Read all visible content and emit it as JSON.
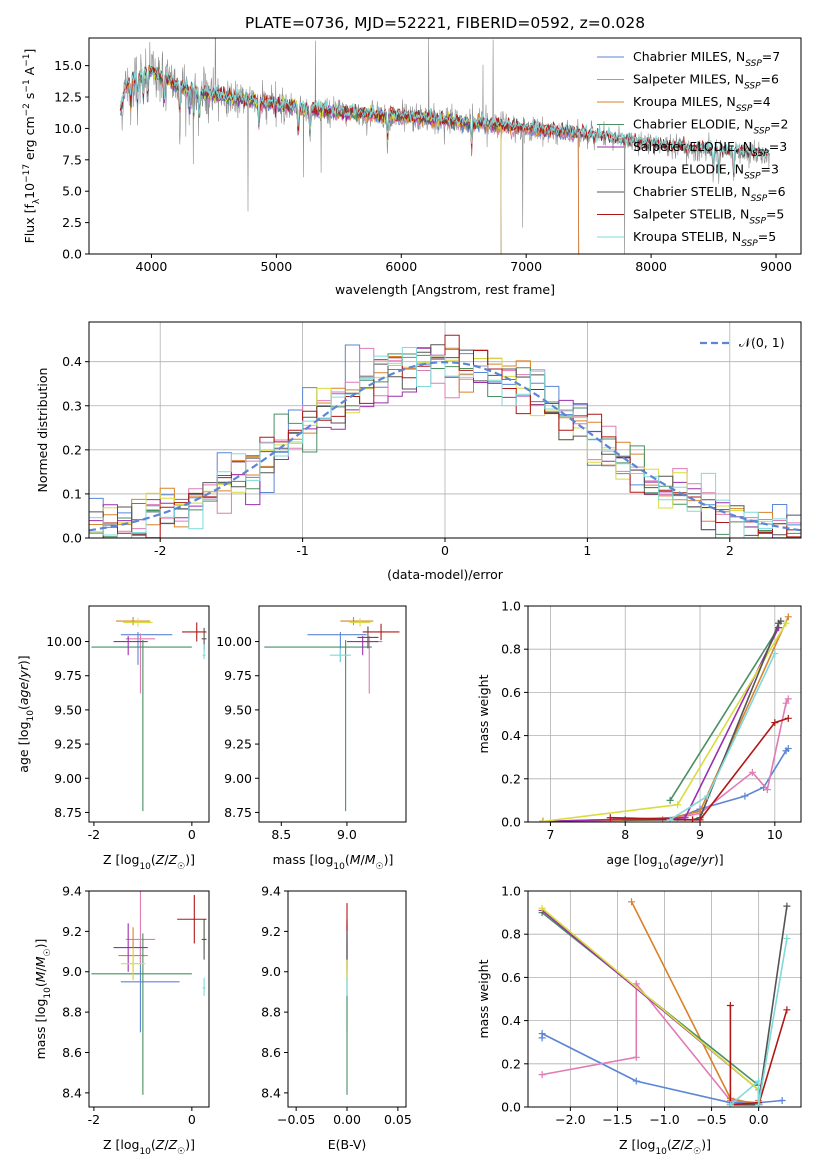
{
  "figure_title": "PLATE=0736, MJD=52221, FIBERID=0592, z=0.028",
  "colors": {
    "Chabrier MILES": "#5b86d6",
    "Salpeter MILES": "#e07bb5",
    "Kroupa MILES": "#d9822b",
    "Chabrier ELODIE": "#4a8f62",
    "Salpeter ELODIE": "#9b2fae",
    "Kroupa ELODIE": "#d8dd3f",
    "Chabrier STELIB": "#555555",
    "Salpeter STELIB": "#b01818",
    "Kroupa STELIB": "#7fdada",
    "data": "#8c8c8c"
  },
  "chart_data": [
    {
      "id": "spectrum",
      "type": "line",
      "title": "PLATE=0736, MJD=52221, FIBERID=0592, z=0.028",
      "xlabel": "wavelength [Angstrom, rest frame]",
      "ylabel": "Flux [f_λ10^-17 erg cm^-2 s^-1 A^-1]",
      "xlim": [
        3500,
        9200
      ],
      "ylim": [
        0,
        17.2
      ],
      "xticks": [
        4000,
        5000,
        6000,
        7000,
        8000,
        9000
      ],
      "yticks": [
        0.0,
        2.5,
        5.0,
        7.5,
        10.0,
        12.5,
        15.0
      ],
      "legend_position": "top-right",
      "legend": [
        {
          "name": "Chabrier MILES",
          "n_ssp": "7"
        },
        {
          "name": "Salpeter MILES",
          "n_ssp": "6"
        },
        {
          "name": "Kroupa MILES",
          "n_ssp": "4"
        },
        {
          "name": "Chabrier ELODIE",
          "n_ssp": "2"
        },
        {
          "name": "Salpeter ELODIE",
          "n_ssp": "3"
        },
        {
          "name": "Kroupa ELODIE",
          "n_ssp": "3"
        },
        {
          "name": "Chabrier STELIB",
          "n_ssp": "6"
        },
        {
          "name": "Salpeter STELIB",
          "n_ssp": "5"
        },
        {
          "name": "Kroupa STELIB",
          "n_ssp": "5"
        }
      ],
      "continuum": {
        "x": [
          3750,
          3800,
          3900,
          4000,
          4100,
          4200,
          4400,
          4600,
          4800,
          5000,
          5200,
          5400,
          5600,
          5800,
          6000,
          6200,
          6400,
          6600,
          6800,
          7000,
          7200,
          7400,
          7600,
          7800,
          8000,
          8200,
          8400,
          8600,
          8800,
          8950
        ],
        "y": [
          11.5,
          13.5,
          14.2,
          14.6,
          14.0,
          13.4,
          12.8,
          12.5,
          12.2,
          11.9,
          11.6,
          11.4,
          11.2,
          11.1,
          10.9,
          10.8,
          10.6,
          10.4,
          10.2,
          10.0,
          9.8,
          9.6,
          9.3,
          9.0,
          8.7,
          8.5,
          8.3,
          8.2,
          8.0,
          7.9
        ]
      },
      "model_cutoffs": {
        "MILES": [
          3750,
          7420
        ],
        "ELODIE": [
          3900,
          6800
        ],
        "STELIB": [
          3750,
          8950
        ]
      }
    },
    {
      "id": "residuals",
      "type": "histogram",
      "xlabel": "(data-model)/error",
      "ylabel": "Normed distribution",
      "xlim": [
        -2.5,
        2.5
      ],
      "ylim": [
        0,
        0.49
      ],
      "xticks": [
        -2,
        -1,
        0,
        1,
        2
      ],
      "yticks": [
        0.0,
        0.1,
        0.2,
        0.3,
        0.4
      ],
      "grid": true,
      "bin_width": 0.1,
      "reference_curve": "N(0,1)",
      "legend_label": "𝒩(0, 1)",
      "legend_position": "top-right"
    },
    {
      "id": "age_vs_Z",
      "type": "errorbar",
      "xlabel": "Z [log10(Z/Z☉)]",
      "ylabel": "age  [log10(age/yr)]",
      "xlim": [
        -2.1,
        0.35
      ],
      "ylim": [
        8.68,
        10.26
      ],
      "xticks": [
        -2,
        0
      ],
      "yticks": [
        8.75,
        9.0,
        9.25,
        9.5,
        9.75,
        10.0
      ],
      "points": [
        {
          "series": "Chabrier MILES",
          "x": -1.1,
          "xerr": [
            0.35,
            0.7
          ],
          "y": 10.05,
          "yerr": [
            0.22,
            0.02
          ]
        },
        {
          "series": "Salpeter MILES",
          "x": -1.05,
          "xerr": [
            0.3,
            0.3
          ],
          "y": 10.02,
          "yerr": [
            0.4,
            0.04
          ]
        },
        {
          "series": "Kroupa MILES",
          "x": -1.2,
          "xerr": [
            0.35,
            0.35
          ],
          "y": 10.15,
          "yerr": [
            0.03,
            0.03
          ]
        },
        {
          "series": "Chabrier ELODIE",
          "x": -1.0,
          "xerr": [
            1.05,
            1.0
          ],
          "y": 9.96,
          "yerr": [
            1.2,
            0.05
          ]
        },
        {
          "series": "Salpeter ELODIE",
          "x": -1.3,
          "xerr": [
            0.3,
            0.4
          ],
          "y": 10.0,
          "yerr": [
            0.1,
            0.04
          ]
        },
        {
          "series": "Kroupa ELODIE",
          "x": -1.1,
          "xerr": [
            0.3,
            0.3
          ],
          "y": 10.14,
          "yerr": [
            0.03,
            0.03
          ]
        },
        {
          "series": "Chabrier STELIB",
          "x": 0.25,
          "xerr": [
            0.05,
            0.05
          ],
          "y": 10.02,
          "yerr": [
            0.08,
            0.08
          ]
        },
        {
          "series": "Salpeter STELIB",
          "x": 0.1,
          "xerr": [
            0.3,
            0.2
          ],
          "y": 10.07,
          "yerr": [
            0.07,
            0.07
          ]
        },
        {
          "series": "Kroupa STELIB",
          "x": 0.25,
          "xerr": [
            0.03,
            0.03
          ],
          "y": 9.9,
          "yerr": [
            0.03,
            0.08
          ]
        }
      ]
    },
    {
      "id": "age_vs_mass",
      "type": "errorbar",
      "xlabel": "mass [log10(M/M☉)]",
      "ylabel": "",
      "xlim": [
        8.33,
        9.45
      ],
      "ylim": [
        8.68,
        10.26
      ],
      "xticks": [
        8.5,
        9.0
      ],
      "yticks": [
        8.75,
        9.0,
        9.25,
        9.5,
        9.75,
        10.0
      ],
      "points": [
        {
          "series": "Chabrier MILES",
          "x": 8.95,
          "xerr": [
            0.25,
            0.2
          ],
          "y": 10.05,
          "yerr": [
            0.2,
            0.02
          ]
        },
        {
          "series": "Salpeter MILES",
          "x": 9.17,
          "xerr": [
            0.1,
            0.1
          ],
          "y": 10.0,
          "yerr": [
            0.38,
            0.04
          ]
        },
        {
          "series": "Kroupa MILES",
          "x": 9.05,
          "xerr": [
            0.1,
            0.15
          ],
          "y": 10.15,
          "yerr": [
            0.03,
            0.03
          ]
        },
        {
          "series": "Chabrier ELODIE",
          "x": 8.99,
          "xerr": [
            0.62,
            0.2
          ],
          "y": 9.96,
          "yerr": [
            1.2,
            0.05
          ]
        },
        {
          "series": "Salpeter ELODIE",
          "x": 9.12,
          "xerr": [
            0.12,
            0.12
          ],
          "y": 10.0,
          "yerr": [
            0.1,
            0.04
          ]
        },
        {
          "series": "Kroupa ELODIE",
          "x": 9.1,
          "xerr": [
            0.08,
            0.08
          ],
          "y": 10.14,
          "yerr": [
            0.03,
            0.03
          ]
        },
        {
          "series": "Chabrier STELIB",
          "x": 9.16,
          "xerr": [
            0.08,
            0.08
          ],
          "y": 10.03,
          "yerr": [
            0.08,
            0.08
          ]
        },
        {
          "series": "Salpeter STELIB",
          "x": 9.26,
          "xerr": [
            0.14,
            0.14
          ],
          "y": 10.07,
          "yerr": [
            0.06,
            0.06
          ]
        },
        {
          "series": "Kroupa STELIB",
          "x": 8.95,
          "xerr": [
            0.08,
            0.08
          ],
          "y": 9.9,
          "yerr": [
            0.05,
            0.05
          ]
        }
      ]
    },
    {
      "id": "weight_vs_age",
      "type": "line",
      "xlabel": "age  [log10(age/yr)]",
      "ylabel": "mass weight",
      "xlim": [
        6.7,
        10.35
      ],
      "ylim": [
        0,
        1.0
      ],
      "xticks": [
        7,
        8,
        9,
        10
      ],
      "yticks": [
        0.0,
        0.2,
        0.4,
        0.6,
        0.8,
        1.0
      ],
      "grid": true,
      "series": [
        {
          "name": "Chabrier MILES",
          "x": [
            6.9,
            8.0,
            8.7,
            9.0,
            9.6,
            9.85,
            10.15,
            10.18
          ],
          "y": [
            0.003,
            0.01,
            0.02,
            0.06,
            0.12,
            0.16,
            0.33,
            0.34
          ]
        },
        {
          "name": "Salpeter MILES",
          "x": [
            6.9,
            8.7,
            9.0,
            9.7,
            9.9,
            10.15,
            10.18
          ],
          "y": [
            0.003,
            0.02,
            0.04,
            0.23,
            0.15,
            0.55,
            0.57
          ]
        },
        {
          "name": "Kroupa MILES",
          "x": [
            6.9,
            8.5,
            9.0,
            10.18
          ],
          "y": [
            0.003,
            0.01,
            0.05,
            0.95
          ]
        },
        {
          "name": "Chabrier ELODIE",
          "x": [
            8.6,
            10.05
          ],
          "y": [
            0.1,
            0.9
          ]
        },
        {
          "name": "Salpeter ELODIE",
          "x": [
            6.9,
            8.8,
            10.05
          ],
          "y": [
            0.003,
            0.02,
            0.9
          ]
        },
        {
          "name": "Kroupa ELODIE",
          "x": [
            6.9,
            8.7,
            10.15
          ],
          "y": [
            0.003,
            0.08,
            0.92
          ]
        },
        {
          "name": "Chabrier STELIB",
          "x": [
            8.0,
            8.9,
            9.0,
            10.05,
            10.08
          ],
          "y": [
            0.01,
            0.01,
            0.02,
            0.92,
            0.93
          ]
        },
        {
          "name": "Salpeter STELIB",
          "x": [
            7.8,
            8.9,
            9.0,
            10.0,
            10.18
          ],
          "y": [
            0.02,
            0.01,
            0.01,
            0.46,
            0.48
          ]
        },
        {
          "name": "Kroupa STELIB",
          "x": [
            8.6,
            9.1,
            10.0
          ],
          "y": [
            0.01,
            0.12,
            0.78
          ]
        }
      ]
    },
    {
      "id": "mass_vs_Z",
      "type": "errorbar",
      "xlabel": "Z [log10(Z/Z☉)]",
      "ylabel": "mass [log10(M/M☉)]",
      "xlim": [
        -2.1,
        0.35
      ],
      "ylim": [
        8.33,
        9.4
      ],
      "xticks": [
        -2,
        0
      ],
      "yticks": [
        8.4,
        8.6,
        8.8,
        9.0,
        9.2,
        9.4
      ],
      "points": [
        {
          "series": "Chabrier MILES",
          "x": -1.05,
          "xerr": [
            0.4,
            0.8
          ],
          "y": 8.95,
          "yerr": [
            0.25,
            0.2
          ]
        },
        {
          "series": "Salpeter MILES",
          "x": -1.05,
          "xerr": [
            0.3,
            0.3
          ],
          "y": 9.16,
          "yerr": [
            0.12,
            0.24
          ]
        },
        {
          "series": "Kroupa MILES",
          "x": -1.2,
          "xerr": [
            0.3,
            0.3
          ],
          "y": 9.08,
          "yerr": [
            0.12,
            0.14
          ]
        },
        {
          "series": "Chabrier ELODIE",
          "x": -1.0,
          "xerr": [
            1.05,
            1.0
          ],
          "y": 8.99,
          "yerr": [
            0.6,
            0.2
          ]
        },
        {
          "series": "Salpeter ELODIE",
          "x": -1.3,
          "xerr": [
            0.3,
            0.4
          ],
          "y": 9.12,
          "yerr": [
            0.12,
            0.12
          ]
        },
        {
          "series": "Kroupa ELODIE",
          "x": -1.2,
          "xerr": [
            0.25,
            0.25
          ],
          "y": 9.04,
          "yerr": [
            0.08,
            0.08
          ]
        },
        {
          "series": "Chabrier STELIB",
          "x": 0.25,
          "xerr": [
            0.05,
            0.05
          ],
          "y": 9.16,
          "yerr": [
            0.1,
            0.1
          ]
        },
        {
          "series": "Salpeter STELIB",
          "x": 0.05,
          "xerr": [
            0.35,
            0.25
          ],
          "y": 9.26,
          "yerr": [
            0.12,
            0.12
          ]
        },
        {
          "series": "Kroupa STELIB",
          "x": 0.25,
          "xerr": [
            0.03,
            0.03
          ],
          "y": 8.92,
          "yerr": [
            0.04,
            0.05
          ]
        }
      ]
    },
    {
      "id": "mass_vs_ebv",
      "type": "errorbar",
      "xlabel": "E(B-V)",
      "ylabel": "",
      "xlim": [
        -0.058,
        0.058
      ],
      "ylim": [
        8.33,
        9.4
      ],
      "xticks": [
        -0.05,
        0.0,
        0.05
      ],
      "yticks": [
        8.4,
        8.6,
        8.8,
        9.0,
        9.2,
        9.4
      ],
      "points": [
        {
          "series": "Chabrier MILES",
          "x": 0.0,
          "xerr": [
            0,
            0
          ],
          "y": 8.95,
          "yerr": [
            0.25,
            0.2
          ]
        },
        {
          "series": "Salpeter MILES",
          "x": 0.0,
          "xerr": [
            0,
            0
          ],
          "y": 9.16,
          "yerr": [
            0.12,
            0.1
          ]
        },
        {
          "series": "Kroupa MILES",
          "x": 0.0,
          "xerr": [
            0,
            0
          ],
          "y": 9.08,
          "yerr": [
            0.12,
            0.1
          ]
        },
        {
          "series": "Chabrier ELODIE",
          "x": 0.0,
          "xerr": [
            0,
            0
          ],
          "y": 8.99,
          "yerr": [
            0.6,
            0.2
          ]
        },
        {
          "series": "Salpeter ELODIE",
          "x": 0.0,
          "xerr": [
            0,
            0
          ],
          "y": 9.12,
          "yerr": [
            0.12,
            0.12
          ]
        },
        {
          "series": "Kroupa ELODIE",
          "x": 0.0,
          "xerr": [
            0,
            0
          ],
          "y": 9.04,
          "yerr": [
            0.08,
            0.08
          ]
        },
        {
          "series": "Chabrier STELIB",
          "x": 0.0,
          "xerr": [
            0,
            0
          ],
          "y": 9.16,
          "yerr": [
            0.1,
            0.1
          ]
        },
        {
          "series": "Salpeter STELIB",
          "x": 0.0,
          "xerr": [
            0,
            0
          ],
          "y": 9.26,
          "yerr": [
            0.06,
            0.08
          ]
        },
        {
          "series": "Kroupa STELIB",
          "x": 0.0,
          "xerr": [
            0,
            0
          ],
          "y": 8.92,
          "yerr": [
            0.04,
            0.05
          ]
        }
      ]
    },
    {
      "id": "weight_vs_Z",
      "type": "line",
      "xlabel": "Z [log10(Z/Z☉)]",
      "ylabel": "mass weight",
      "xlim": [
        -2.45,
        0.45
      ],
      "ylim": [
        0,
        1.0
      ],
      "xticks": [
        -2.0,
        -1.5,
        -1.0,
        -0.5,
        0.0
      ],
      "yticks": [
        0.0,
        0.2,
        0.4,
        0.6,
        0.8,
        1.0
      ],
      "grid": true,
      "series": [
        {
          "name": "Chabrier MILES",
          "x": [
            -2.3,
            -2.3,
            -1.3,
            -0.3,
            0.0,
            0.25
          ],
          "y": [
            0.32,
            0.34,
            0.12,
            0.02,
            0.02,
            0.03
          ]
        },
        {
          "name": "Salpeter MILES",
          "x": [
            -2.3,
            -1.3,
            -1.3,
            -0.3,
            0.0,
            0.0
          ],
          "y": [
            0.15,
            0.23,
            0.57,
            0.03,
            0.02,
            0.01
          ]
        },
        {
          "name": "Kroupa MILES",
          "x": [
            -1.35,
            -0.3,
            0.0,
            0.0
          ],
          "y": [
            0.95,
            0.04,
            0.01,
            0.03
          ]
        },
        {
          "name": "Chabrier ELODIE",
          "x": [
            -2.3,
            0.0
          ],
          "y": [
            0.9,
            0.1
          ]
        },
        {
          "name": "Salpeter ELODIE",
          "x": [
            -2.3,
            0.0,
            0.0
          ],
          "y": [
            0.91,
            0.08,
            0.01
          ]
        },
        {
          "name": "Kroupa ELODIE",
          "x": [
            -2.3,
            0.0,
            0.0
          ],
          "y": [
            0.92,
            0.08,
            0.01
          ]
        },
        {
          "name": "Chabrier STELIB",
          "x": [
            -0.3,
            0.0,
            0.0,
            0.3
          ],
          "y": [
            0.01,
            0.01,
            0.02,
            0.93
          ]
        },
        {
          "name": "Salpeter STELIB",
          "x": [
            -0.3,
            -0.3,
            0.0,
            0.0,
            0.3
          ],
          "y": [
            0.47,
            0.01,
            0.02,
            0.01,
            0.45
          ]
        },
        {
          "name": "Kroupa STELIB",
          "x": [
            -0.3,
            0.0,
            0.0,
            0.3
          ],
          "y": [
            0.01,
            0.12,
            0.01,
            0.78
          ]
        }
      ]
    }
  ]
}
